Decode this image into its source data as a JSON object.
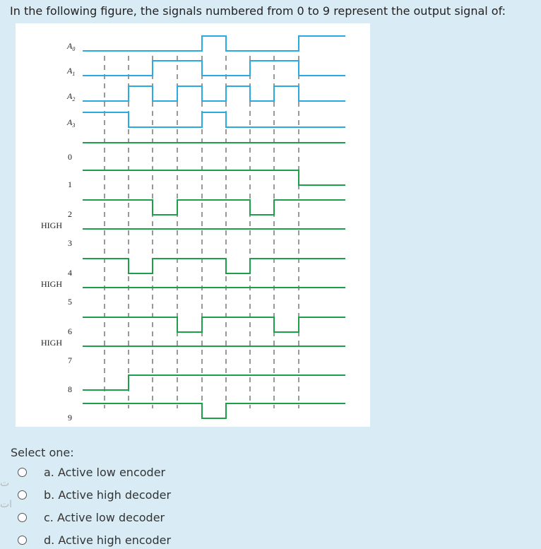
{
  "question": "In the following figure, the signals numbered from 0 to 9 represent the output signal of:",
  "select_label": "Select one:",
  "options": [
    {
      "text": "a. Active low encoder"
    },
    {
      "text": "b. Active high decoder"
    },
    {
      "text": "c. Active low decoder"
    },
    {
      "text": "d. Active high encoder"
    }
  ],
  "edge_glyphs": [
    "ت",
    "ات"
  ],
  "timing": {
    "inputs": [
      {
        "label": "A",
        "sub": "0",
        "levels": [
          0,
          0,
          0,
          0,
          1,
          0,
          0,
          0,
          1
        ]
      },
      {
        "label": "A",
        "sub": "1",
        "levels": [
          0,
          0,
          1,
          1,
          0,
          0,
          1,
          1,
          0
        ]
      },
      {
        "label": "A",
        "sub": "2",
        "levels": [
          0,
          1,
          0,
          1,
          0,
          1,
          0,
          1,
          0
        ]
      },
      {
        "label": "A",
        "sub": "3",
        "levels": [
          1,
          0,
          0,
          0,
          1,
          0,
          0,
          0,
          0
        ]
      }
    ],
    "outputs": [
      {
        "label": "0",
        "levels": [
          1,
          1,
          1,
          1,
          1,
          1,
          1,
          1,
          1
        ],
        "prefix": ""
      },
      {
        "label": "1",
        "levels": [
          1,
          1,
          1,
          1,
          1,
          1,
          1,
          1,
          0
        ],
        "prefix": ""
      },
      {
        "label": "2",
        "levels": [
          1,
          1,
          0,
          1,
          1,
          1,
          0,
          1,
          1
        ],
        "prefix": ""
      },
      {
        "label": "3",
        "levels": [
          1,
          1,
          1,
          1,
          1,
          1,
          1,
          1,
          1
        ],
        "prefix": "HIGH"
      },
      {
        "label": "4",
        "levels": [
          1,
          0,
          1,
          1,
          1,
          0,
          1,
          1,
          1
        ],
        "prefix": ""
      },
      {
        "label": "5",
        "levels": [
          1,
          1,
          1,
          1,
          1,
          1,
          1,
          1,
          1
        ],
        "prefix": "HIGH"
      },
      {
        "label": "6",
        "levels": [
          1,
          1,
          1,
          0,
          1,
          1,
          1,
          0,
          1
        ],
        "prefix": ""
      },
      {
        "label": "7",
        "levels": [
          1,
          1,
          1,
          1,
          1,
          1,
          1,
          1,
          1
        ],
        "prefix": "HIGH"
      },
      {
        "label": "8",
        "levels": [
          0,
          1,
          1,
          1,
          1,
          1,
          1,
          1,
          1
        ],
        "prefix": ""
      },
      {
        "label": "9",
        "levels": [
          1,
          1,
          1,
          1,
          0,
          1,
          1,
          1,
          1
        ],
        "prefix": ""
      }
    ],
    "colors": {
      "inputs": "#29abe2",
      "outputs": "#1e9e4a",
      "grid": "#333333"
    }
  }
}
